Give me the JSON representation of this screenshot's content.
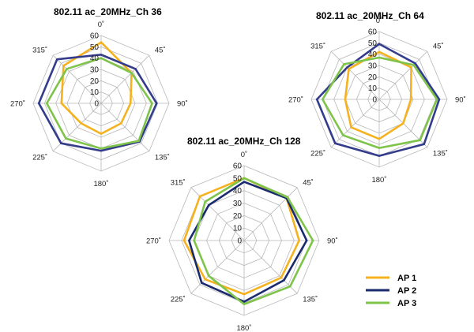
{
  "chart_data": [
    {
      "type": "radar",
      "title": "802.11 ac_20MHz_Ch 36",
      "categories": [
        "0˚",
        "45˚",
        "90˚",
        "135˚",
        "180˚",
        "225˚",
        "270˚",
        "315˚"
      ],
      "radial_ticks": [
        "0",
        "10",
        "20",
        "30",
        "40",
        "50",
        "60"
      ],
      "rlim": [
        0,
        60
      ],
      "series": [
        {
          "name": "AP 1",
          "color": "#f5b21e",
          "values": [
            54,
            38,
            26,
            25,
            27,
            25,
            35,
            47
          ]
        },
        {
          "name": "AP 2",
          "color": "#343c8c",
          "values": [
            43,
            43,
            49,
            48,
            42,
            50,
            55,
            55
          ]
        },
        {
          "name": "AP 3",
          "color": "#7ec34a",
          "values": [
            40,
            38,
            45,
            47,
            40,
            44,
            48,
            43
          ]
        }
      ]
    },
    {
      "type": "radar",
      "title": "802.11 ac_20MHz_Ch 64",
      "categories": [
        "0˚",
        "45˚",
        "90˚",
        "135˚",
        "180˚",
        "225˚",
        "270˚",
        "315˚"
      ],
      "radial_ticks": [
        "0",
        "10",
        "20",
        "30",
        "40",
        "50",
        "60"
      ],
      "rlim": [
        0,
        60
      ],
      "series": [
        {
          "name": "AP 1",
          "color": "#f5b21e",
          "values": [
            42,
            40,
            28,
            30,
            35,
            35,
            30,
            38
          ]
        },
        {
          "name": "AP 2",
          "color": "#343c8c",
          "values": [
            49,
            45,
            53,
            56,
            50,
            55,
            55,
            40
          ]
        },
        {
          "name": "AP 3",
          "color": "#7ec34a",
          "values": [
            37,
            43,
            51,
            51,
            43,
            45,
            50,
            44
          ]
        }
      ]
    },
    {
      "type": "radar",
      "title": "802.11 ac_20MHz_Ch 128",
      "categories": [
        "0˚",
        "45˚",
        "90˚",
        "135˚",
        "180˚",
        "225˚",
        "270˚",
        "315˚"
      ],
      "radial_ticks": [
        "0",
        "10",
        "20",
        "30",
        "40",
        "50",
        "60"
      ],
      "rlim": [
        0,
        60
      ],
      "series": [
        {
          "name": "AP 1",
          "color": "#f5b21e",
          "values": [
            50,
            48,
            44,
            42,
            43,
            44,
            48,
            50
          ]
        },
        {
          "name": "AP 2",
          "color": "#1a2a6e",
          "values": [
            47,
            48,
            50,
            45,
            49,
            48,
            44,
            40
          ]
        },
        {
          "name": "AP 3",
          "color": "#7ec34a",
          "values": [
            50,
            49,
            55,
            52,
            51,
            40,
            40,
            44
          ]
        }
      ]
    }
  ],
  "legend": {
    "position": "bottom-right",
    "items": [
      {
        "label": "AP 1",
        "color": "#f5b21e"
      },
      {
        "label": "AP 2",
        "color": "#1a2a6e"
      },
      {
        "label": "AP 3",
        "color": "#7ec34a"
      }
    ]
  }
}
